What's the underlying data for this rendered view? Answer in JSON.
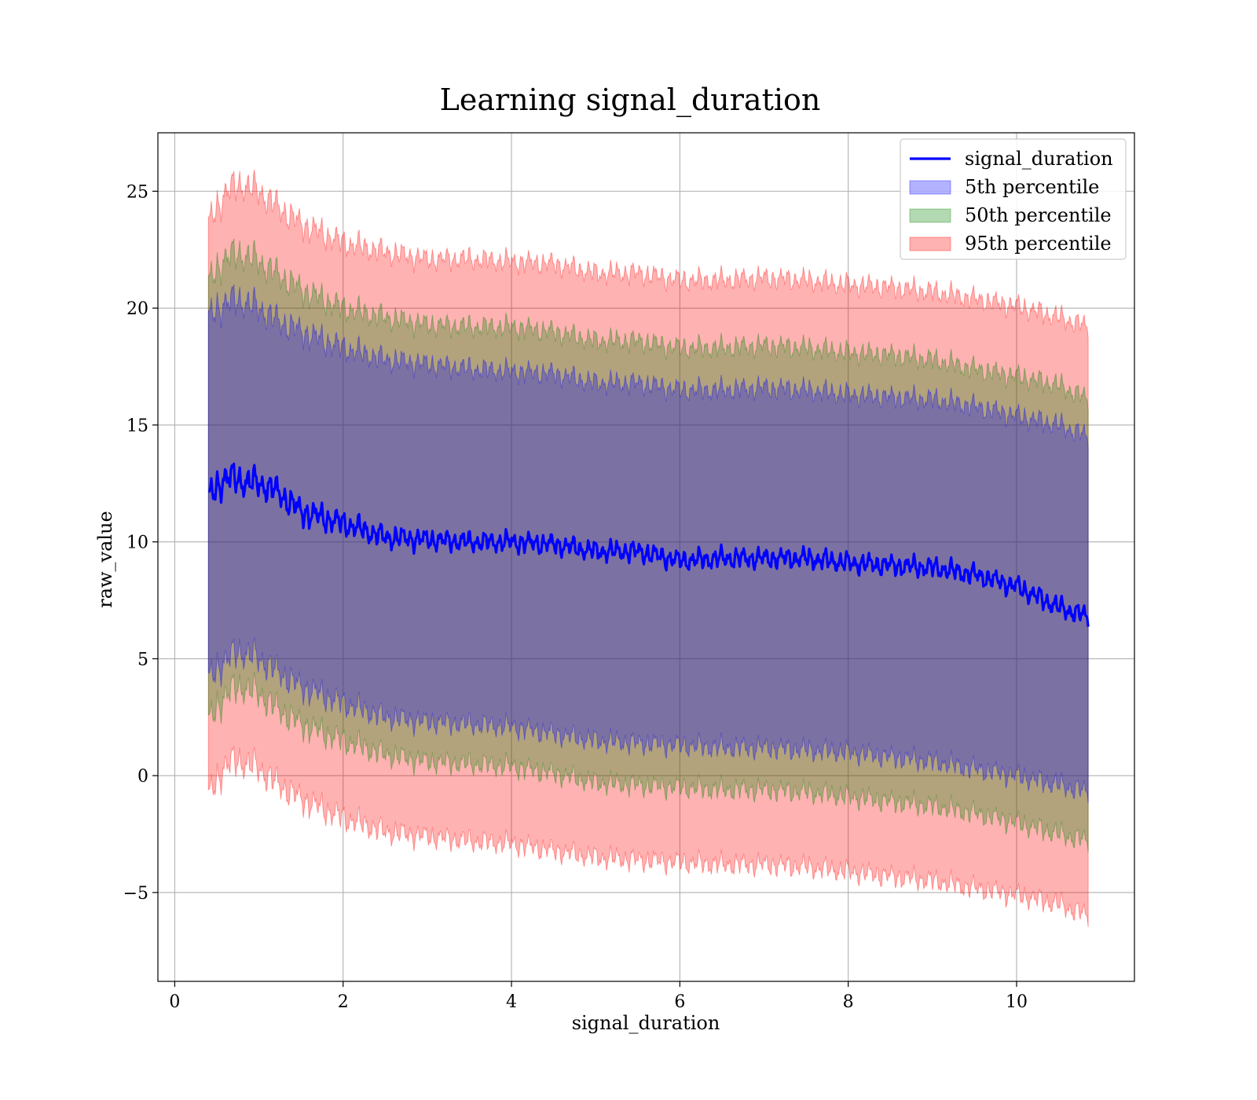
{
  "chart_data": {
    "type": "area",
    "title": "Learning signal_duration",
    "xlabel": "signal_duration",
    "ylabel": "raw_value",
    "xlim": [
      -0.2,
      11.4
    ],
    "ylim": [
      -8.8,
      27.5
    ],
    "x_ticks": [
      0,
      2,
      4,
      6,
      8,
      10
    ],
    "x_tick_labels": [
      "0",
      "2",
      "4",
      "6",
      "8",
      "10"
    ],
    "y_ticks": [
      -5,
      0,
      5,
      10,
      15,
      20,
      25
    ],
    "y_tick_labels": [
      "−5",
      "0",
      "5",
      "10",
      "15",
      "20",
      "25"
    ],
    "grid": true,
    "legend_position": "top-right",
    "x": [
      0.4,
      0.6,
      0.8,
      1.0,
      1.2,
      1.5,
      2.0,
      2.5,
      3.0,
      3.5,
      4.0,
      4.5,
      5.0,
      5.5,
      6.0,
      6.5,
      7.0,
      7.5,
      8.0,
      8.5,
      9.0,
      9.5,
      10.0,
      10.5,
      10.85
    ],
    "series": [
      {
        "name": "signal_duration",
        "kind": "line",
        "color": "#0000ff",
        "values": [
          11.8,
          12.8,
          12.6,
          12.5,
          12.2,
          11.3,
          10.8,
          10.2,
          10.1,
          10.0,
          10.0,
          9.9,
          9.6,
          9.6,
          9.2,
          9.3,
          9.3,
          9.3,
          9.1,
          9.0,
          8.9,
          8.6,
          8.1,
          7.2,
          6.8
        ]
      },
      {
        "name": "5th percentile",
        "kind": "band",
        "color": "#0000ff",
        "lower": [
          4.0,
          5.0,
          5.3,
          5.0,
          4.5,
          3.8,
          3.1,
          2.5,
          2.3,
          2.2,
          2.1,
          1.8,
          1.5,
          1.4,
          1.3,
          1.2,
          1.2,
          1.1,
          1.0,
          0.8,
          0.6,
          0.3,
          0.0,
          -0.4,
          -0.7
        ],
        "upper": [
          19.5,
          20.3,
          20.3,
          20.0,
          19.5,
          19.0,
          18.3,
          17.8,
          17.6,
          17.4,
          17.3,
          17.2,
          16.8,
          16.8,
          16.5,
          16.5,
          16.6,
          16.5,
          16.3,
          16.2,
          16.1,
          15.8,
          15.4,
          15.0,
          14.5
        ]
      },
      {
        "name": "50th percentile",
        "kind": "band",
        "color": "#008000",
        "lower": [
          2.2,
          3.5,
          3.8,
          3.5,
          2.9,
          2.2,
          1.5,
          0.9,
          0.6,
          0.5,
          0.4,
          0.1,
          -0.3,
          -0.4,
          -0.5,
          -0.6,
          -0.6,
          -0.7,
          -0.9,
          -1.1,
          -1.3,
          -1.6,
          -2.0,
          -2.5,
          -2.8
        ],
        "upper": [
          21.0,
          22.2,
          22.3,
          22.0,
          21.5,
          20.8,
          20.0,
          19.6,
          19.3,
          19.2,
          19.2,
          19.0,
          18.6,
          18.6,
          18.3,
          18.3,
          18.4,
          18.3,
          18.1,
          18.0,
          17.8,
          17.4,
          17.1,
          16.7,
          16.1
        ]
      },
      {
        "name": "95th percentile",
        "kind": "band",
        "color": "#ff0000",
        "lower": [
          -1.0,
          0.5,
          0.6,
          0.3,
          -0.3,
          -1.0,
          -1.8,
          -2.4,
          -2.6,
          -2.8,
          -2.9,
          -3.2,
          -3.5,
          -3.6,
          -3.7,
          -3.8,
          -3.8,
          -3.9,
          -4.1,
          -4.3,
          -4.5,
          -4.8,
          -5.1,
          -5.5,
          -6.0
        ],
        "upper": [
          23.5,
          25.0,
          25.3,
          25.0,
          24.4,
          23.6,
          22.8,
          22.4,
          22.1,
          22.1,
          22.0,
          21.9,
          21.5,
          21.5,
          21.2,
          21.2,
          21.3,
          21.2,
          21.0,
          20.9,
          20.7,
          20.4,
          20.1,
          19.6,
          19.2
        ]
      }
    ]
  },
  "colors": {
    "line": "#0000ff",
    "band_5th": "#0000ff",
    "band_50th": "#008000",
    "band_95th": "#ff0000",
    "grid": "#b0b0b0",
    "background": "#ffffff"
  }
}
